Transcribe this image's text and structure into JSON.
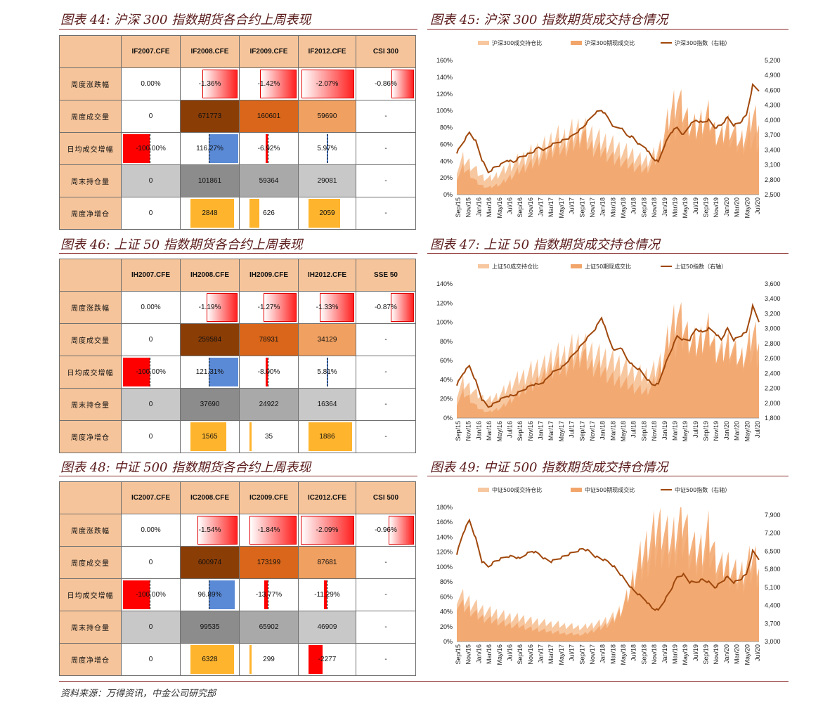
{
  "colors": {
    "heat_dark": "#8b3d06",
    "heat_mid": "#d9661a",
    "heat_light": "#f0a060",
    "grey_dark": "#8c8c8c",
    "grey_mid": "#a9a9a9",
    "grey_light": "#c8c8c8",
    "ratio_fill": "#f7c7a0",
    "basis_fill": "#f2a56a",
    "index_line": "#a0480c"
  },
  "source": "资料来源：万得资讯，中金公司研究部",
  "tables": [
    {
      "title": "图表 44:  沪深 300 指数期货各合约上周表现",
      "columns": [
        "IF2007.CFE",
        "IF2008.CFE",
        "IF2009.CFE",
        "IF2012.CFE",
        "CSI 300"
      ],
      "rows": [
        {
          "label": "周度涨跌幅",
          "cells": [
            "0.00%",
            "-1.36%",
            "-1.42%",
            "-2.07%",
            "-0.86%"
          ]
        },
        {
          "label": "周度成交量",
          "cells": [
            "0",
            "671773",
            "160601",
            "59690",
            "-"
          ]
        },
        {
          "label": "日均成交增幅",
          "cells": [
            "-100.00%",
            "116.27%",
            "-6.92%",
            "5.97%",
            "-"
          ]
        },
        {
          "label": "周末持仓量",
          "cells": [
            "0",
            "101861",
            "59364",
            "29081",
            "-"
          ]
        },
        {
          "label": "周度净增仓",
          "cells": [
            "0",
            "2848",
            "626",
            "2059",
            "-"
          ]
        }
      ]
    },
    {
      "title": "图表 46:  上证 50 指数期货各合约上周表现",
      "columns": [
        "IH2007.CFE",
        "IH2008.CFE",
        "IH2009.CFE",
        "IH2012.CFE",
        "SSE 50"
      ],
      "rows": [
        {
          "label": "周度涨跌幅",
          "cells": [
            "0.00%",
            "-1.19%",
            "-1.27%",
            "-1.33%",
            "-0.87%"
          ]
        },
        {
          "label": "周度成交量",
          "cells": [
            "0",
            "259584",
            "78931",
            "34129",
            "-"
          ]
        },
        {
          "label": "日均成交增幅",
          "cells": [
            "-100.00%",
            "121.31%",
            "-8.00%",
            "5.81%",
            "-"
          ]
        },
        {
          "label": "周末持仓量",
          "cells": [
            "0",
            "37690",
            "24922",
            "16364",
            "-"
          ]
        },
        {
          "label": "周度净增仓",
          "cells": [
            "0",
            "1565",
            "35",
            "1886",
            "-"
          ]
        }
      ]
    },
    {
      "title": "图表 48:  中证 500 指数期货各合约上周表现",
      "columns": [
        "IC2007.CFE",
        "IC2008.CFE",
        "IC2009.CFE",
        "IC2012.CFE",
        "CSI 500"
      ],
      "rows": [
        {
          "label": "周度涨跌幅",
          "cells": [
            "0.00%",
            "-1.54%",
            "-1.84%",
            "-2.09%",
            "-0.96%"
          ]
        },
        {
          "label": "周度成交量",
          "cells": [
            "0",
            "600974",
            "173199",
            "87681",
            "-"
          ]
        },
        {
          "label": "日均成交增幅",
          "cells": [
            "-100.00%",
            "96.89%",
            "-13.77%",
            "-11.29%",
            "-"
          ]
        },
        {
          "label": "周末持仓量",
          "cells": [
            "0",
            "99535",
            "65902",
            "46909",
            "-"
          ]
        },
        {
          "label": "周度净增仓",
          "cells": [
            "0",
            "6328",
            "299",
            "-2277",
            "-"
          ]
        }
      ]
    }
  ],
  "chart_data": [
    {
      "title": "图表 45:  沪深 300 指数期货成交持仓情况",
      "type": "area",
      "legend": [
        "沪深300成交持仓比",
        "沪深300期现成交比",
        "沪深300指数（右轴）"
      ],
      "x_ticks": [
        "Sep/15",
        "Nov/15",
        "Jan/16",
        "Mar/16",
        "May/16",
        "Jul/16",
        "Sep/16",
        "Nov/16",
        "Jan/17",
        "Mar/17",
        "May/17",
        "Jul/17",
        "Sep/17",
        "Nov/17",
        "Jan/18",
        "Mar/18",
        "May/18",
        "Jul/18",
        "Sep/18",
        "Nov/18",
        "Jan/19",
        "Mar/19",
        "May/19",
        "Jul/19",
        "Sep/19",
        "Nov/19",
        "Jan/20",
        "Mar/20",
        "May/20",
        "Jul/20"
      ],
      "y_left_ticks": [
        "0%",
        "20%",
        "40%",
        "60%",
        "80%",
        "100%",
        "120%",
        "140%",
        "160%"
      ],
      "y_left_range": [
        0,
        160
      ],
      "y_right_ticks": [
        "2,500",
        "2,800",
        "3,100",
        "3,400",
        "3,700",
        "4,000",
        "4,300",
        "4,600",
        "4,900",
        "5,200"
      ],
      "y_right_range": [
        2500,
        5200
      ],
      "index_points": [
        3350,
        3550,
        3750,
        3580,
        3200,
        2950,
        3050,
        3100,
        3200,
        3150,
        3250,
        3300,
        3350,
        3450,
        3400,
        3500,
        3550,
        3600,
        3650,
        3750,
        3850,
        4000,
        4150,
        4200,
        4050,
        3850,
        3850,
        3700,
        3650,
        3500,
        3450,
        3250,
        3150,
        3500,
        3750,
        3850,
        3700,
        3900,
        4000,
        3950,
        4000,
        3850,
        3900,
        4050,
        3900,
        3950,
        4100,
        4700,
        4600
      ],
      "ratio_points": [
        30,
        40,
        35,
        28,
        20,
        18,
        20,
        25,
        30,
        35,
        40,
        42,
        48,
        50,
        55,
        60,
        65,
        62,
        70,
        72,
        75,
        68,
        65,
        60,
        58,
        55,
        50,
        48,
        45,
        40,
        38,
        42,
        50,
        60,
        70,
        80,
        85,
        78,
        75,
        80,
        85,
        70,
        65,
        70,
        60,
        55,
        58,
        62,
        60
      ],
      "basis_points": [
        20,
        30,
        25,
        15,
        10,
        8,
        10,
        12,
        18,
        22,
        28,
        32,
        35,
        40,
        45,
        50,
        55,
        50,
        58,
        60,
        70,
        55,
        52,
        50,
        45,
        40,
        38,
        35,
        32,
        30,
        28,
        35,
        45,
        70,
        95,
        110,
        95,
        80,
        75,
        85,
        90,
        70,
        65,
        80,
        70,
        60,
        70,
        90,
        85
      ]
    },
    {
      "title": "图表 47:  上证 50 指数期货成交持仓情况",
      "type": "area",
      "legend": [
        "上证50成交持仓比",
        "上证50期现成交比",
        "上证50指数（右轴）"
      ],
      "x_ticks": [
        "Sep/15",
        "Nov/15",
        "Jan/16",
        "Mar/16",
        "May/16",
        "Jul/16",
        "Sep/16",
        "Nov/16",
        "Jan/17",
        "Mar/17",
        "May/17",
        "Jul/17",
        "Sep/17",
        "Nov/17",
        "Jan/18",
        "Mar/18",
        "May/18",
        "Jul/18",
        "Sep/18",
        "Nov/18",
        "Jan/19",
        "Mar/19",
        "May/19",
        "Jul/19",
        "Sep/19",
        "Nov/19",
        "Jan/20",
        "Mar/20",
        "May/20",
        "Jul/20"
      ],
      "y_left_ticks": [
        "0%",
        "20%",
        "40%",
        "60%",
        "80%",
        "100%",
        "120%",
        "140%"
      ],
      "y_left_range": [
        0,
        140
      ],
      "y_right_ticks": [
        "1,800",
        "2,000",
        "2,200",
        "2,400",
        "2,600",
        "2,800",
        "3,000",
        "3,200",
        "3,400",
        "3,600"
      ],
      "y_right_range": [
        1800,
        3600
      ],
      "index_points": [
        2250,
        2400,
        2500,
        2300,
        2050,
        1950,
        2000,
        2050,
        2100,
        2100,
        2150,
        2200,
        2250,
        2250,
        2300,
        2400,
        2450,
        2500,
        2600,
        2700,
        2800,
        2900,
        3000,
        3150,
        2900,
        2700,
        2750,
        2600,
        2500,
        2450,
        2350,
        2250,
        2250,
        2500,
        2700,
        2900,
        2850,
        2850,
        3000,
        2950,
        3000,
        2950,
        2850,
        3000,
        2850,
        2900,
        2950,
        3300,
        3100
      ],
      "ratio_points": [
        25,
        35,
        30,
        25,
        20,
        18,
        20,
        24,
        30,
        35,
        40,
        42,
        48,
        50,
        52,
        58,
        62,
        60,
        68,
        70,
        72,
        66,
        62,
        60,
        58,
        56,
        52,
        50,
        46,
        44,
        42,
        45,
        52,
        60,
        68,
        78,
        82,
        76,
        74,
        78,
        82,
        70,
        66,
        70,
        62,
        58,
        60,
        64,
        62
      ],
      "basis_points": [
        15,
        25,
        20,
        12,
        8,
        6,
        8,
        10,
        15,
        20,
        25,
        30,
        32,
        38,
        42,
        48,
        52,
        48,
        55,
        58,
        65,
        52,
        50,
        48,
        42,
        38,
        36,
        34,
        30,
        28,
        26,
        32,
        42,
        65,
        90,
        105,
        92,
        78,
        72,
        80,
        88,
        68,
        62,
        75,
        68,
        58,
        66,
        85,
        80
      ]
    },
    {
      "title": "图表 49:  中证 500 指数期货成交持仓情况",
      "type": "area",
      "legend": [
        "中证500成交持仓比",
        "中证500期现成交比",
        "中证500指数（右轴）"
      ],
      "x_ticks": [
        "Sep/15",
        "Nov/15",
        "Jan/16",
        "Mar/16",
        "May/16",
        "Jul/16",
        "Sep/16",
        "Nov/16",
        "Jan/17",
        "Mar/17",
        "May/17",
        "Jul/17",
        "Sep/17",
        "Nov/17",
        "Jan/18",
        "Mar/18",
        "May/18",
        "Jul/18",
        "Sep/18",
        "Nov/18",
        "Jan/19",
        "Mar/19",
        "May/19",
        "Jul/19",
        "Sep/19",
        "Nov/19",
        "Jan/20",
        "Mar/20",
        "May/20",
        "Jul/20"
      ],
      "y_left_ticks": [
        "0%",
        "20%",
        "40%",
        "60%",
        "80%",
        "100%",
        "120%",
        "140%",
        "160%",
        "180%"
      ],
      "y_left_range": [
        0,
        180
      ],
      "y_right_ticks": [
        "3,000",
        "3,700",
        "4,400",
        "5,100",
        "5,800",
        "6,500",
        "7,200",
        "7,900"
      ],
      "y_right_range": [
        3000,
        8200
      ],
      "index_points": [
        6400,
        7200,
        7700,
        7000,
        6100,
        5900,
        6100,
        6200,
        6300,
        6300,
        6200,
        6400,
        6500,
        6400,
        6200,
        6100,
        6200,
        6300,
        6400,
        6500,
        6600,
        6500,
        6300,
        6200,
        6100,
        5900,
        5600,
        5300,
        5000,
        4800,
        4600,
        4300,
        4200,
        4600,
        5000,
        5500,
        5600,
        5300,
        5300,
        5400,
        5300,
        5100,
        5300,
        5500,
        5300,
        5400,
        5600,
        6500,
        6200
      ],
      "ratio_points": [
        60,
        55,
        50,
        45,
        40,
        38,
        36,
        34,
        32,
        30,
        30,
        28,
        26,
        25,
        24,
        22,
        22,
        20,
        20,
        18,
        18,
        20,
        22,
        24,
        28,
        32,
        40,
        55,
        75,
        90,
        100,
        110,
        120,
        115,
        110,
        120,
        130,
        110,
        100,
        105,
        115,
        95,
        85,
        90,
        80,
        75,
        80,
        90,
        85
      ],
      "basis_points": [
        50,
        45,
        40,
        35,
        30,
        28,
        26,
        24,
        22,
        20,
        20,
        18,
        16,
        15,
        14,
        12,
        12,
        10,
        10,
        9,
        9,
        12,
        15,
        18,
        22,
        28,
        38,
        55,
        80,
        105,
        120,
        135,
        150,
        140,
        130,
        145,
        160,
        130,
        115,
        120,
        140,
        110,
        95,
        100,
        90,
        85,
        95,
        110,
        100
      ]
    }
  ]
}
